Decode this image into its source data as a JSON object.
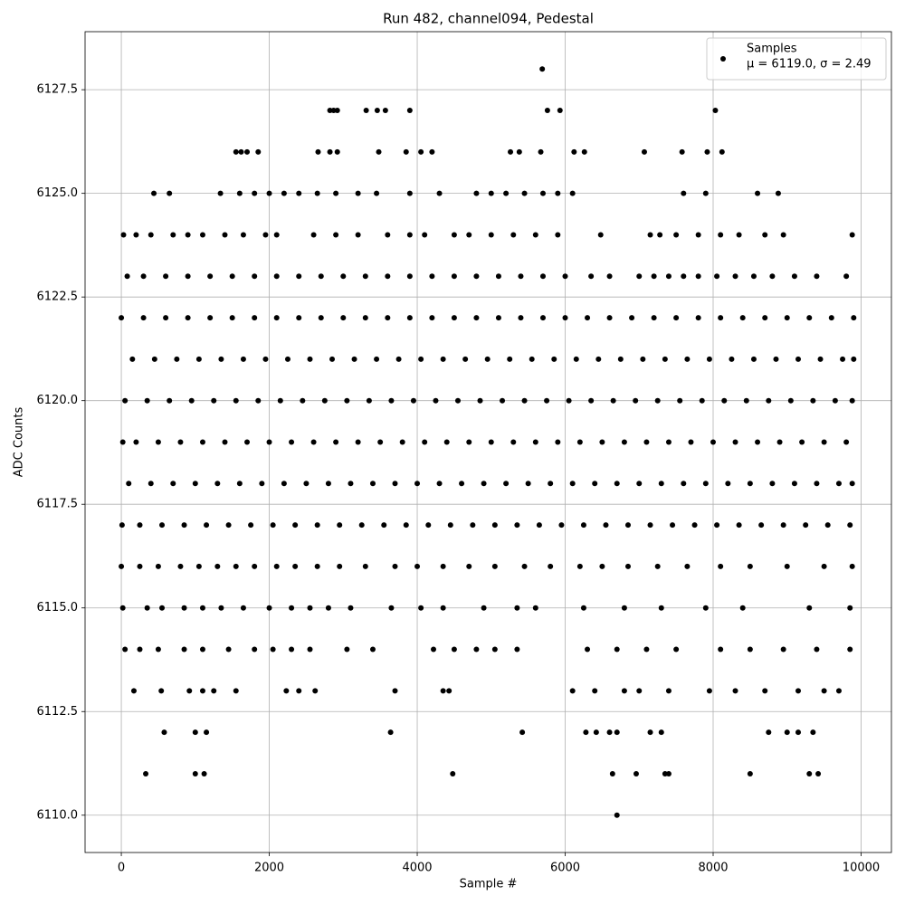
{
  "chart_data": {
    "type": "scatter",
    "title": "Run 482, channel094, Pedestal",
    "x_label": "Sample #",
    "y_label": "ADC Counts",
    "xlim": [
      -490,
      10410
    ],
    "ylim": [
      6109.1,
      6128.9
    ],
    "xticks": [
      0,
      2000,
      4000,
      6000,
      8000,
      10000
    ],
    "yticks": [
      {
        "value": 6110,
        "label": "6110.0"
      },
      {
        "value": 6112.5,
        "label": "6112.5"
      },
      {
        "value": 6115,
        "label": "6115.0"
      },
      {
        "value": 6117.5,
        "label": "6117.5"
      },
      {
        "value": 6120,
        "label": "6120.0"
      },
      {
        "value": 6122.5,
        "label": "6122.5"
      },
      {
        "value": 6125,
        "label": "6125.0"
      },
      {
        "value": 6127.5,
        "label": "6127.5"
      }
    ],
    "grid": true,
    "legend_position": "upper right",
    "legend_note": "μ = 6119.0, σ = 2.49",
    "series": [
      {
        "name": "Samples",
        "color": "#000000",
        "x": [
          5690,
          2820,
          2870,
          2920,
          3310,
          3460,
          3570,
          3900,
          5760,
          5930,
          8030,
          1550,
          1620,
          1700,
          1850,
          2660,
          2820,
          2920,
          3480,
          3850,
          4050,
          4200,
          5260,
          5380,
          5670,
          6120,
          6260,
          7070,
          7580,
          7920,
          8120,
          440,
          650,
          1340,
          1600,
          1800,
          2000,
          2200,
          2400,
          2650,
          2900,
          3200,
          3450,
          3900,
          4300,
          4800,
          5000,
          5200,
          5450,
          5700,
          5900,
          6100,
          7600,
          7900,
          8600,
          8880,
          30,
          200,
          400,
          700,
          900,
          1100,
          1400,
          1650,
          1950,
          2100,
          2600,
          2900,
          3200,
          3600,
          3900,
          4100,
          4500,
          4700,
          5000,
          5300,
          5600,
          5900,
          6480,
          7150,
          7280,
          7500,
          7800,
          8100,
          8350,
          8700,
          8950,
          9880,
          80,
          300,
          600,
          900,
          1200,
          1500,
          1800,
          2100,
          2400,
          2700,
          3000,
          3300,
          3600,
          3900,
          4200,
          4500,
          4800,
          5100,
          5400,
          5700,
          6000,
          6350,
          6600,
          7000,
          7200,
          7400,
          7600,
          7800,
          8050,
          8300,
          8550,
          8800,
          9100,
          9400,
          9800,
          0,
          300,
          600,
          900,
          1200,
          1500,
          1800,
          2100,
          2400,
          2700,
          3000,
          3300,
          3600,
          3900,
          4200,
          4500,
          4800,
          5100,
          5400,
          5700,
          6000,
          6300,
          6600,
          6900,
          7200,
          7500,
          7800,
          8100,
          8400,
          8700,
          9000,
          9300,
          9600,
          9900,
          150,
          450,
          750,
          1050,
          1350,
          1650,
          1950,
          2250,
          2550,
          2850,
          3150,
          3450,
          3750,
          4050,
          4350,
          4650,
          4950,
          5250,
          5550,
          5850,
          6150,
          6450,
          6750,
          7050,
          7350,
          7650,
          7950,
          8250,
          8550,
          8850,
          9150,
          9450,
          9750,
          9900,
          50,
          350,
          650,
          950,
          1250,
          1550,
          1850,
          2150,
          2450,
          2750,
          3050,
          3350,
          3650,
          3950,
          4250,
          4550,
          4850,
          5150,
          5450,
          5750,
          6050,
          6350,
          6650,
          6950,
          7250,
          7550,
          7850,
          8150,
          8450,
          8750,
          9050,
          9350,
          9650,
          9880,
          20,
          200,
          500,
          800,
          1100,
          1400,
          1700,
          2000,
          2300,
          2600,
          2900,
          3200,
          3500,
          3800,
          4100,
          4400,
          4700,
          5000,
          5300,
          5600,
          5900,
          6200,
          6500,
          6800,
          7100,
          7400,
          7700,
          8000,
          8300,
          8600,
          8900,
          9200,
          9500,
          9800,
          100,
          400,
          700,
          1000,
          1300,
          1600,
          1900,
          2200,
          2500,
          2800,
          3100,
          3400,
          3700,
          4000,
          4300,
          4600,
          4900,
          5200,
          5500,
          5800,
          6100,
          6400,
          6700,
          7000,
          7300,
          7600,
          7900,
          8200,
          8500,
          8800,
          9100,
          9400,
          9700,
          9880,
          10,
          250,
          550,
          850,
          1150,
          1450,
          1750,
          2050,
          2350,
          2650,
          2950,
          3250,
          3550,
          3850,
          4150,
          4450,
          4750,
          5050,
          5350,
          5650,
          5950,
          6250,
          6550,
          6850,
          7150,
          7450,
          7750,
          8050,
          8350,
          8650,
          8950,
          9250,
          9550,
          9850,
          0,
          250,
          500,
          800,
          1050,
          1300,
          1550,
          1800,
          2100,
          2350,
          2650,
          2950,
          3300,
          3700,
          4000,
          4350,
          4700,
          5050,
          5450,
          5800,
          6200,
          6500,
          6850,
          7250,
          7650,
          8100,
          8500,
          9000,
          9500,
          9880,
          20,
          350,
          550,
          850,
          1100,
          1350,
          1650,
          2000,
          2300,
          2550,
          2800,
          3100,
          3650,
          4050,
          4350,
          4900,
          5350,
          5600,
          6250,
          6800,
          7300,
          7900,
          8400,
          9300,
          9850,
          50,
          250,
          500,
          850,
          1100,
          1450,
          1800,
          2050,
          2300,
          2550,
          3050,
          3400,
          4220,
          4500,
          4800,
          5050,
          5350,
          6300,
          6700,
          7100,
          7500,
          8100,
          8500,
          8950,
          9400,
          9850,
          170,
          540,
          920,
          1100,
          1250,
          1550,
          2230,
          2400,
          2620,
          3700,
          4350,
          4430,
          6100,
          6400,
          6800,
          7000,
          7400,
          7950,
          8300,
          8700,
          9150,
          9500,
          9700,
          580,
          1000,
          1150,
          3640,
          5420,
          6280,
          6420,
          6600,
          6700,
          7150,
          7300,
          8750,
          9000,
          9150,
          9350,
          330,
          1000,
          1120,
          4480,
          6640,
          6960,
          7350,
          7400,
          8500,
          9300,
          9420,
          6700
        ],
        "values": [
          6128,
          6127,
          6127,
          6127,
          6127,
          6127,
          6127,
          6127,
          6127,
          6127,
          6127,
          6126,
          6126,
          6126,
          6126,
          6126,
          6126,
          6126,
          6126,
          6126,
          6126,
          6126,
          6126,
          6126,
          6126,
          6126,
          6126,
          6126,
          6126,
          6126,
          6126,
          6125,
          6125,
          6125,
          6125,
          6125,
          6125,
          6125,
          6125,
          6125,
          6125,
          6125,
          6125,
          6125,
          6125,
          6125,
          6125,
          6125,
          6125,
          6125,
          6125,
          6125,
          6125,
          6125,
          6125,
          6125,
          6124,
          6124,
          6124,
          6124,
          6124,
          6124,
          6124,
          6124,
          6124,
          6124,
          6124,
          6124,
          6124,
          6124,
          6124,
          6124,
          6124,
          6124,
          6124,
          6124,
          6124,
          6124,
          6124,
          6124,
          6124,
          6124,
          6124,
          6124,
          6124,
          6124,
          6124,
          6124,
          6123,
          6123,
          6123,
          6123,
          6123,
          6123,
          6123,
          6123,
          6123,
          6123,
          6123,
          6123,
          6123,
          6123,
          6123,
          6123,
          6123,
          6123,
          6123,
          6123,
          6123,
          6123,
          6123,
          6123,
          6123,
          6123,
          6123,
          6123,
          6123,
          6123,
          6123,
          6123,
          6123,
          6123,
          6123,
          6122,
          6122,
          6122,
          6122,
          6122,
          6122,
          6122,
          6122,
          6122,
          6122,
          6122,
          6122,
          6122,
          6122,
          6122,
          6122,
          6122,
          6122,
          6122,
          6122,
          6122,
          6122,
          6122,
          6122,
          6122,
          6122,
          6122,
          6122,
          6122,
          6122,
          6122,
          6122,
          6122,
          6122,
          6121,
          6121,
          6121,
          6121,
          6121,
          6121,
          6121,
          6121,
          6121,
          6121,
          6121,
          6121,
          6121,
          6121,
          6121,
          6121,
          6121,
          6121,
          6121,
          6121,
          6121,
          6121,
          6121,
          6121,
          6121,
          6121,
          6121,
          6121,
          6121,
          6121,
          6121,
          6121,
          6121,
          6121,
          6120,
          6120,
          6120,
          6120,
          6120,
          6120,
          6120,
          6120,
          6120,
          6120,
          6120,
          6120,
          6120,
          6120,
          6120,
          6120,
          6120,
          6120,
          6120,
          6120,
          6120,
          6120,
          6120,
          6120,
          6120,
          6120,
          6120,
          6120,
          6120,
          6120,
          6120,
          6120,
          6120,
          6120,
          6119,
          6119,
          6119,
          6119,
          6119,
          6119,
          6119,
          6119,
          6119,
          6119,
          6119,
          6119,
          6119,
          6119,
          6119,
          6119,
          6119,
          6119,
          6119,
          6119,
          6119,
          6119,
          6119,
          6119,
          6119,
          6119,
          6119,
          6119,
          6119,
          6119,
          6119,
          6119,
          6119,
          6119,
          6118,
          6118,
          6118,
          6118,
          6118,
          6118,
          6118,
          6118,
          6118,
          6118,
          6118,
          6118,
          6118,
          6118,
          6118,
          6118,
          6118,
          6118,
          6118,
          6118,
          6118,
          6118,
          6118,
          6118,
          6118,
          6118,
          6118,
          6118,
          6118,
          6118,
          6118,
          6118,
          6118,
          6118,
          6117,
          6117,
          6117,
          6117,
          6117,
          6117,
          6117,
          6117,
          6117,
          6117,
          6117,
          6117,
          6117,
          6117,
          6117,
          6117,
          6117,
          6117,
          6117,
          6117,
          6117,
          6117,
          6117,
          6117,
          6117,
          6117,
          6117,
          6117,
          6117,
          6117,
          6117,
          6117,
          6117,
          6117,
          6116,
          6116,
          6116,
          6116,
          6116,
          6116,
          6116,
          6116,
          6116,
          6116,
          6116,
          6116,
          6116,
          6116,
          6116,
          6116,
          6116,
          6116,
          6116,
          6116,
          6116,
          6116,
          6116,
          6116,
          6116,
          6116,
          6116,
          6116,
          6116,
          6116,
          6115,
          6115,
          6115,
          6115,
          6115,
          6115,
          6115,
          6115,
          6115,
          6115,
          6115,
          6115,
          6115,
          6115,
          6115,
          6115,
          6115,
          6115,
          6115,
          6115,
          6115,
          6115,
          6115,
          6115,
          6115,
          6114,
          6114,
          6114,
          6114,
          6114,
          6114,
          6114,
          6114,
          6114,
          6114,
          6114,
          6114,
          6114,
          6114,
          6114,
          6114,
          6114,
          6114,
          6114,
          6114,
          6114,
          6114,
          6114,
          6114,
          6114,
          6114,
          6113,
          6113,
          6113,
          6113,
          6113,
          6113,
          6113,
          6113,
          6113,
          6113,
          6113,
          6113,
          6113,
          6113,
          6113,
          6113,
          6113,
          6113,
          6113,
          6113,
          6113,
          6113,
          6113,
          6112,
          6112,
          6112,
          6112,
          6112,
          6112,
          6112,
          6112,
          6112,
          6112,
          6112,
          6112,
          6112,
          6112,
          6112,
          6111,
          6111,
          6111,
          6111,
          6111,
          6111,
          6111,
          6111,
          6111,
          6111,
          6111,
          6110
        ]
      }
    ]
  }
}
